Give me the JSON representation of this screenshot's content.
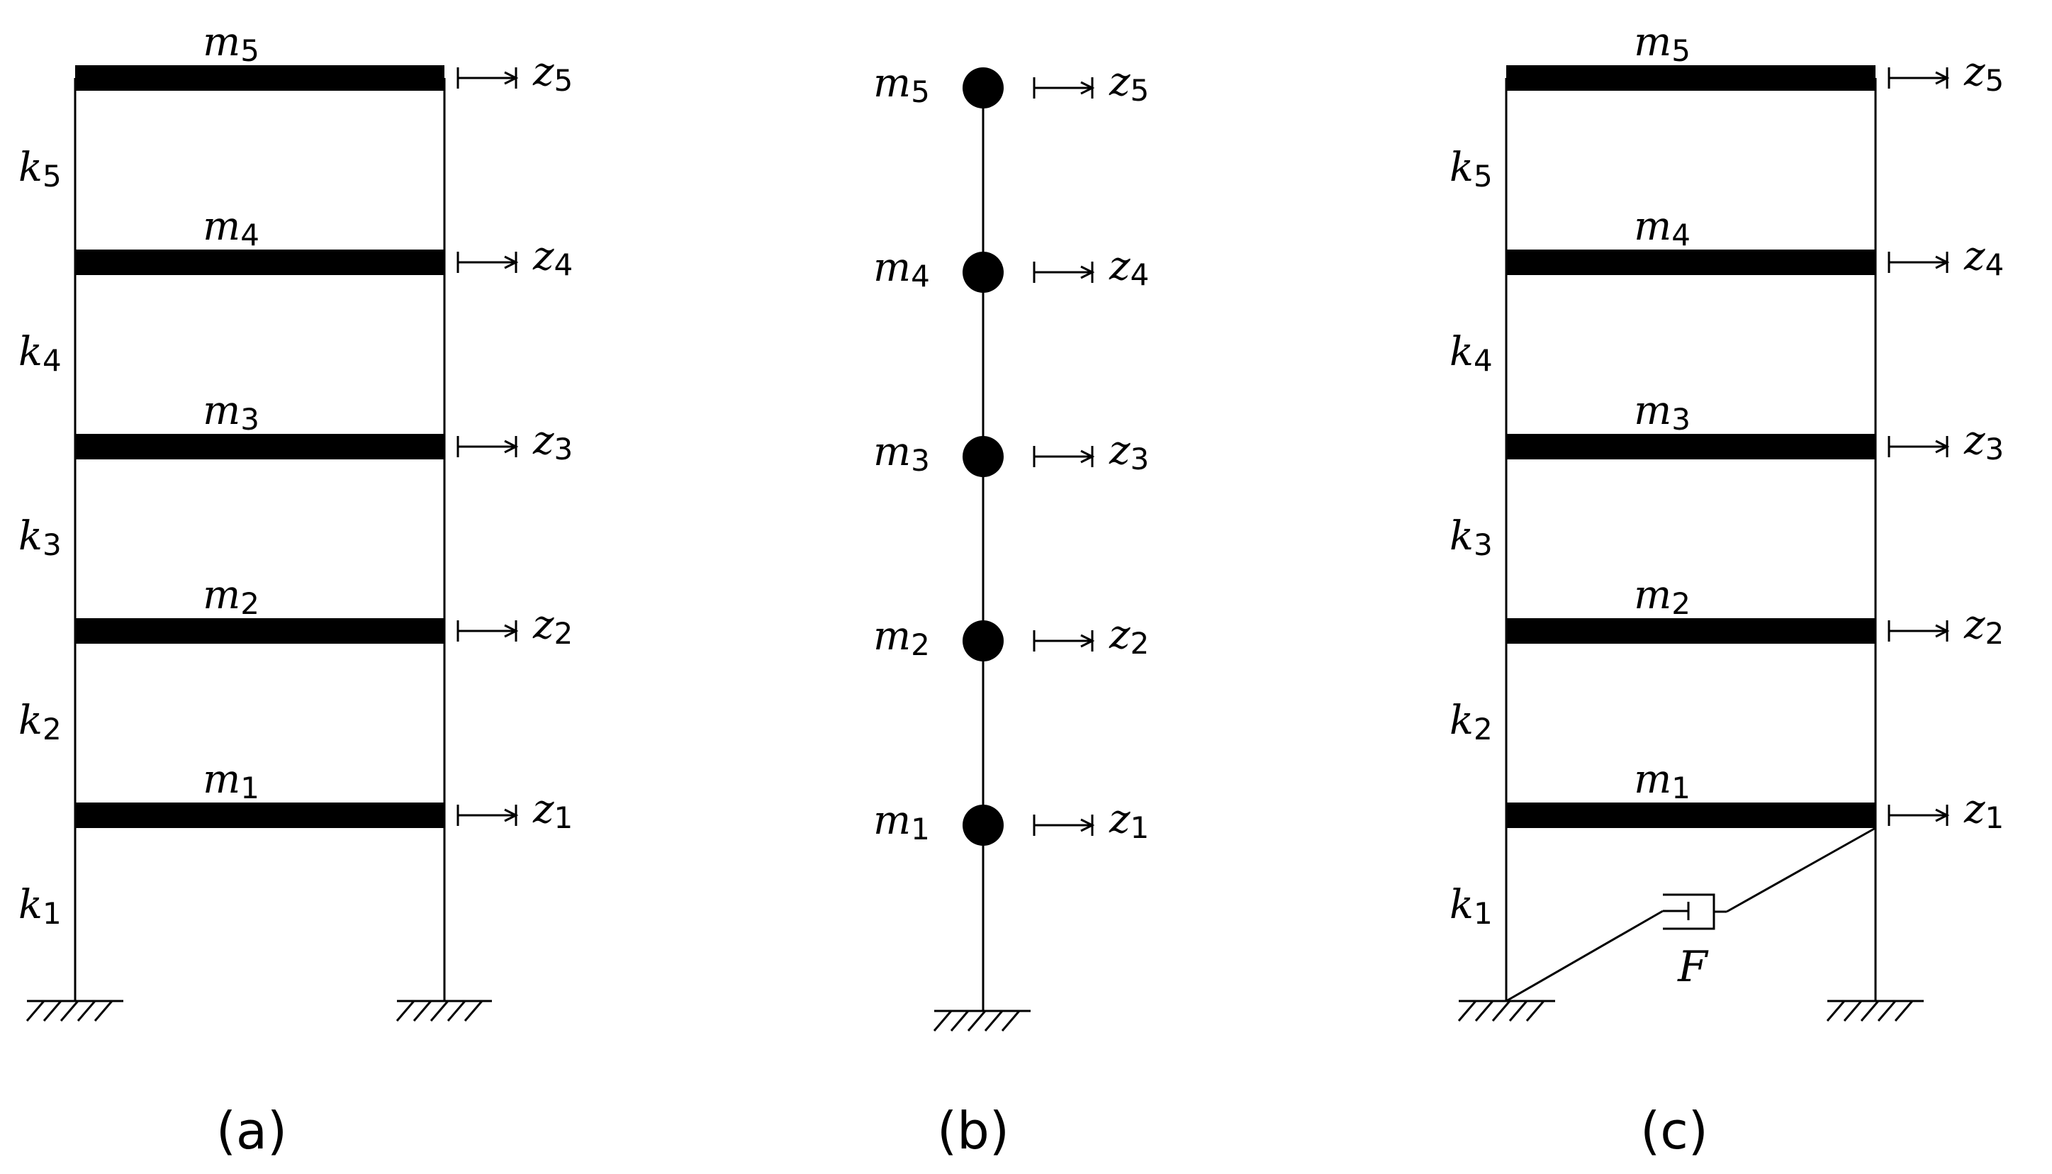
{
  "panels": [
    {
      "id": "a",
      "caption": "(a)",
      "floors": [
        {
          "mass": "m",
          "mass_sub": "1",
          "disp": "z",
          "disp_sub": "1",
          "stiff": "k",
          "stiff_sub": "1"
        },
        {
          "mass": "m",
          "mass_sub": "2",
          "disp": "z",
          "disp_sub": "2",
          "stiff": "k",
          "stiff_sub": "2"
        },
        {
          "mass": "m",
          "mass_sub": "3",
          "disp": "z",
          "disp_sub": "3",
          "stiff": "k",
          "stiff_sub": "3"
        },
        {
          "mass": "m",
          "mass_sub": "4",
          "disp": "z",
          "disp_sub": "4",
          "stiff": "k",
          "stiff_sub": "4"
        },
        {
          "mass": "m",
          "mass_sub": "5",
          "disp": "z",
          "disp_sub": "5",
          "stiff": "k",
          "stiff_sub": "5"
        }
      ]
    },
    {
      "id": "b",
      "caption": "(b)",
      "floors": [
        {
          "mass": "m",
          "mass_sub": "1",
          "disp": "z",
          "disp_sub": "1"
        },
        {
          "mass": "m",
          "mass_sub": "2",
          "disp": "z",
          "disp_sub": "2"
        },
        {
          "mass": "m",
          "mass_sub": "3",
          "disp": "z",
          "disp_sub": "3"
        },
        {
          "mass": "m",
          "mass_sub": "4",
          "disp": "z",
          "disp_sub": "4"
        },
        {
          "mass": "m",
          "mass_sub": "5",
          "disp": "z",
          "disp_sub": "5"
        }
      ]
    },
    {
      "id": "c",
      "caption": "(c)",
      "damper_label": "F",
      "floors": [
        {
          "mass": "m",
          "mass_sub": "1",
          "disp": "z",
          "disp_sub": "1",
          "stiff": "k",
          "stiff_sub": "1"
        },
        {
          "mass": "m",
          "mass_sub": "2",
          "disp": "z",
          "disp_sub": "2",
          "stiff": "k",
          "stiff_sub": "2"
        },
        {
          "mass": "m",
          "mass_sub": "3",
          "disp": "z",
          "disp_sub": "3",
          "stiff": "k",
          "stiff_sub": "3"
        },
        {
          "mass": "m",
          "mass_sub": "4",
          "disp": "z",
          "disp_sub": "4",
          "stiff": "k",
          "stiff_sub": "4"
        },
        {
          "mass": "m",
          "mass_sub": "5",
          "disp": "z",
          "disp_sub": "5",
          "stiff": "k",
          "stiff_sub": "5"
        }
      ]
    }
  ]
}
